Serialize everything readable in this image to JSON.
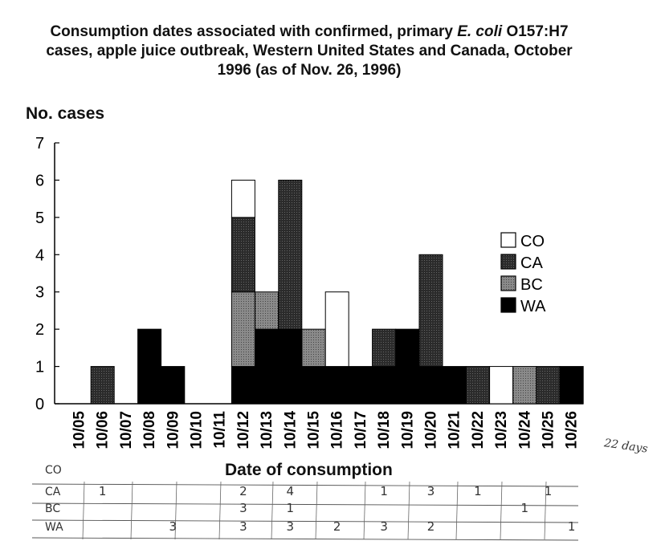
{
  "title": {
    "line1_pre": "Consumption dates associated with  confirmed, primary ",
    "line1_italic": "E. coli",
    "line1_post": " O157:H7",
    "line2": "cases, apple juice outbreak, Western United States and Canada, October",
    "line3": "1996 (as of Nov. 26, 1996)"
  },
  "chart_data": {
    "type": "bar",
    "stacked": true,
    "ylabel": "No. cases",
    "xlabel": "Date of consumption",
    "ylim": [
      0,
      7
    ],
    "yticks": [
      0,
      1,
      2,
      3,
      4,
      5,
      6,
      7
    ],
    "categories": [
      "10/05",
      "10/06",
      "10/07",
      "10/08",
      "10/09",
      "10/10",
      "10/11",
      "10/12",
      "10/13",
      "10/14",
      "10/15",
      "10/16",
      "10/17",
      "10/18",
      "10/19",
      "10/20",
      "10/21",
      "10/22",
      "10/23",
      "10/24",
      "10/25",
      "10/26"
    ],
    "series": [
      {
        "name": "WA",
        "color": "#000000",
        "values": [
          0,
          0,
          0,
          2,
          1,
          0,
          0,
          1,
          2,
          2,
          1,
          1,
          1,
          1,
          2,
          1,
          1,
          0,
          0,
          0,
          0,
          1
        ]
      },
      {
        "name": "BC",
        "color": "#888888",
        "values": [
          0,
          0,
          0,
          0,
          0,
          0,
          0,
          2,
          1,
          0,
          1,
          0,
          0,
          0,
          0,
          0,
          0,
          0,
          0,
          1,
          0,
          0
        ]
      },
      {
        "name": "CA",
        "color": "#333333",
        "values": [
          0,
          1,
          0,
          0,
          0,
          0,
          0,
          2,
          0,
          4,
          0,
          0,
          0,
          1,
          0,
          3,
          0,
          1,
          0,
          0,
          1,
          0
        ]
      },
      {
        "name": "CO",
        "color": "#ffffff",
        "values": [
          0,
          0,
          0,
          0,
          0,
          0,
          0,
          1,
          0,
          0,
          0,
          2,
          0,
          0,
          0,
          0,
          0,
          0,
          1,
          0,
          0,
          0
        ]
      }
    ],
    "legend_order": [
      "CO",
      "CA",
      "BC",
      "WA"
    ],
    "legend_position": "right"
  },
  "handwritten_table": {
    "rows": [
      {
        "label": "CO",
        "entries": []
      },
      {
        "label": "CA",
        "entries": [
          {
            "col": "10/06",
            "text": "1"
          },
          {
            "col": "10/12",
            "text": "2"
          },
          {
            "col": "10/14",
            "text": "4"
          },
          {
            "col": "10/18",
            "text": "1"
          },
          {
            "col": "10/20",
            "text": "3"
          },
          {
            "col": "10/22",
            "text": "1"
          },
          {
            "col": "10/25",
            "text": "1"
          }
        ]
      },
      {
        "label": "BC",
        "entries": [
          {
            "col": "10/12",
            "text": "3"
          },
          {
            "col": "10/14",
            "text": "1"
          },
          {
            "col": "10/24",
            "text": "1"
          }
        ]
      },
      {
        "label": "WA",
        "entries": [
          {
            "col": "10/09",
            "text": "3"
          },
          {
            "col": "10/12",
            "text": "3"
          },
          {
            "col": "10/14",
            "text": "3"
          },
          {
            "col": "10/16",
            "text": "2"
          },
          {
            "col": "10/18",
            "text": "3"
          },
          {
            "col": "10/20",
            "text": "2"
          },
          {
            "col": "10/26",
            "text": "1"
          }
        ]
      }
    ],
    "side_note": "22 days"
  }
}
